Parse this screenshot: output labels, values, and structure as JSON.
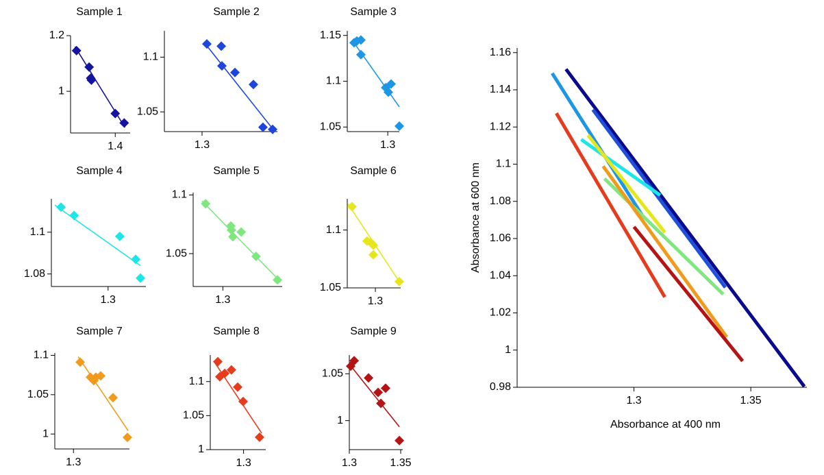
{
  "chart_data": [
    {
      "type": "scatter",
      "title": "Sample 1",
      "color": "#1414a0",
      "xlim": [
        1.34,
        1.42
      ],
      "ylim": [
        0.85,
        1.2
      ],
      "xticks": [
        1.4
      ],
      "yticks": [
        1,
        1.2
      ],
      "x": [
        1.348,
        1.365,
        1.367,
        1.368,
        1.4,
        1.412
      ],
      "values": [
        1.146,
        1.087,
        1.047,
        1.04,
        0.92,
        0.886
      ],
      "fit": {
        "x": [
          1.346,
          1.413
        ],
        "values": [
          1.16,
          0.87
        ]
      }
    },
    {
      "type": "scatter",
      "title": "Sample 2",
      "color": "#1e46dc",
      "xlim": [
        1.27,
        1.36
      ],
      "ylim": [
        1.032,
        1.124
      ],
      "xticks": [
        1.3
      ],
      "yticks": [
        1.05,
        1.1
      ],
      "x": [
        1.3038,
        1.3153,
        1.3158,
        1.3262,
        1.3409,
        1.3485,
        1.3562
      ],
      "values": [
        1.112,
        1.11,
        1.092,
        1.086,
        1.075,
        1.036,
        1.034
      ],
      "fit": {
        "x": [
          1.302,
          1.358
        ],
        "values": [
          1.113,
          1.032
        ]
      }
    },
    {
      "type": "scatter",
      "title": "Sample 3",
      "color": "#1e96e6",
      "xlim": [
        1.265,
        1.31
      ],
      "ylim": [
        1.045,
        1.155
      ],
      "xticks": [
        1.3
      ],
      "yticks": [
        1.05,
        1.1,
        1.15
      ],
      "x": [
        1.2709,
        1.2733,
        1.2768,
        1.2768,
        1.2982,
        1.3005,
        1.3029,
        1.31
      ],
      "values": [
        1.142,
        1.144,
        1.145,
        1.129,
        1.093,
        1.088,
        1.097,
        1.051
      ],
      "fit": {
        "x": [
          1.2697,
          1.31
        ],
        "values": [
          1.144,
          1.072
        ]
      }
    },
    {
      "type": "scatter",
      "title": "Sample 4",
      "color": "#1ee6e6",
      "xlim": [
        1.27,
        1.32
      ],
      "ylim": [
        1.074,
        1.116
      ],
      "xticks": [
        1.3
      ],
      "yticks": [
        1.08,
        1.1
      ],
      "x": [
        1.2751,
        1.282,
        1.3062,
        1.3146,
        1.3171
      ],
      "values": [
        1.112,
        1.108,
        1.098,
        1.087,
        1.078
      ],
      "fit": {
        "x": [
          1.2718,
          1.3171
        ],
        "values": [
          1.113,
          1.084
        ]
      }
    },
    {
      "type": "scatter",
      "title": "Sample 5",
      "color": "#80e680",
      "xlim": [
        1.29,
        1.32
      ],
      "ylim": [
        1.022,
        1.102
      ],
      "xticks": [
        1.3
      ],
      "yticks": [
        1.05,
        1.1
      ],
      "x": [
        1.2942,
        1.3027,
        1.3029,
        1.3034,
        1.3062,
        1.3112,
        1.3184
      ],
      "values": [
        1.0925,
        1.0736,
        1.0701,
        1.0644,
        1.0684,
        1.0477,
        1.0276
      ],
      "fit": {
        "x": [
          1.293,
          1.3195
        ],
        "values": [
          1.0948,
          1.0259
        ]
      }
    },
    {
      "type": "scatter",
      "title": "Sample 6",
      "color": "#e6e61e",
      "xlim": [
        1.28,
        1.318
      ],
      "ylim": [
        1.05,
        1.127
      ],
      "xticks": [
        1.3
      ],
      "yticks": [
        1.05,
        1.1
      ],
      "x": [
        1.2834,
        1.2941,
        1.2966,
        1.2985,
        1.2985,
        1.317
      ],
      "values": [
        1.1202,
        1.0905,
        1.0893,
        1.0869,
        1.0786,
        1.0554
      ],
      "fit": {
        "x": [
          1.2805,
          1.317
        ],
        "values": [
          1.1226,
          1.0554
        ]
      }
    },
    {
      "type": "scatter",
      "title": "Sample 7",
      "color": "#f09a1e",
      "xlim": [
        1.29,
        1.33
      ],
      "ylim": [
        0.981,
        1.103
      ],
      "xticks": [
        1.3
      ],
      "yticks": [
        1,
        1.05,
        1.1
      ],
      "x": [
        1.3036,
        1.3091,
        1.3109,
        1.312,
        1.3146,
        1.3212,
        1.3289
      ],
      "values": [
        1.0913,
        1.0722,
        1.0678,
        1.0722,
        1.0739,
        1.0461,
        0.9957
      ],
      "fit": {
        "x": [
          1.3025,
          1.3293
        ],
        "values": [
          1.0983,
          1.0043
        ]
      }
    },
    {
      "type": "scatter",
      "title": "Sample 8",
      "color": "#e63c1e",
      "xlim": [
        1.27,
        1.32
      ],
      "ylim": [
        1,
        1.139
      ],
      "xticks": [
        1.3
      ],
      "yticks": [
        1,
        1.05,
        1.1
      ],
      "x": [
        1.2768,
        1.2786,
        1.283,
        1.2891,
        1.2947,
        1.2996,
        1.3144
      ],
      "values": [
        1.1293,
        1.1071,
        1.1121,
        1.1172,
        1.0919,
        1.0707,
        1.0182
      ],
      "fit": {
        "x": [
          1.2743,
          1.3163
        ],
        "values": [
          1.1273,
          1.0242
        ]
      }
    },
    {
      "type": "scatter",
      "title": "Sample 9",
      "color": "#b41414",
      "xlim": [
        1.3,
        1.352
      ],
      "ylim": [
        0.969,
        1.07
      ],
      "xticks": [
        1.3,
        1.35
      ],
      "yticks": [
        1,
        1.05
      ],
      "x": [
        1.3013,
        1.3047,
        1.3187,
        1.328,
        1.3307,
        1.3353,
        1.3487
      ],
      "values": [
        1.0581,
        1.064,
        1.0456,
        1.0301,
        1.0184,
        1.0346,
        0.9787
      ],
      "fit": {
        "x": [
          1.3,
          1.3487
        ],
        "values": [
          1.0603,
          0.9934
        ]
      }
    },
    {
      "type": "line",
      "xlabel": "Absorbance at 400 nm",
      "ylabel": "Absorbance at 600 nm",
      "xlim": [
        1.25,
        1.374
      ],
      "ylim": [
        0.98,
        1.1625
      ],
      "xticks": [
        1.3,
        1.35
      ],
      "yticks": [
        0.98,
        1,
        1.02,
        1.04,
        1.06,
        1.08,
        1.1,
        1.12,
        1.14,
        1.16
      ],
      "series": [
        {
          "color": "#0a0a8c",
          "x": [
            1.2709,
            1.3729
          ],
          "values": [
            1.1511,
            0.9804
          ]
        },
        {
          "color": "#1e50dc",
          "x": [
            1.2824,
            1.3391
          ],
          "values": [
            1.1293,
            1.0337
          ]
        },
        {
          "color": "#1e96e6",
          "x": [
            1.265,
            1.3038
          ],
          "values": [
            1.1489,
            1.0719
          ]
        },
        {
          "color": "#1ee6e6",
          "x": [
            1.2774,
            1.3112
          ],
          "values": [
            1.1133,
            1.0833
          ]
        },
        {
          "color": "#80e680",
          "x": [
            1.2874,
            1.3382
          ],
          "values": [
            1.0922,
            1.03
          ]
        },
        {
          "color": "#e6e61e",
          "x": [
            1.2803,
            1.3132
          ],
          "values": [
            1.1156,
            1.0633
          ]
        },
        {
          "color": "#f09a1e",
          "x": [
            1.2868,
            1.3397
          ],
          "values": [
            1.0989,
            1.007
          ]
        },
        {
          "color": "#e63c1e",
          "x": [
            1.2668,
            1.3132
          ],
          "values": [
            1.1274,
            1.0285
          ]
        },
        {
          "color": "#b41414",
          "x": [
            1.3,
            1.3465
          ],
          "values": [
            1.0663,
            0.9941
          ]
        }
      ]
    }
  ]
}
